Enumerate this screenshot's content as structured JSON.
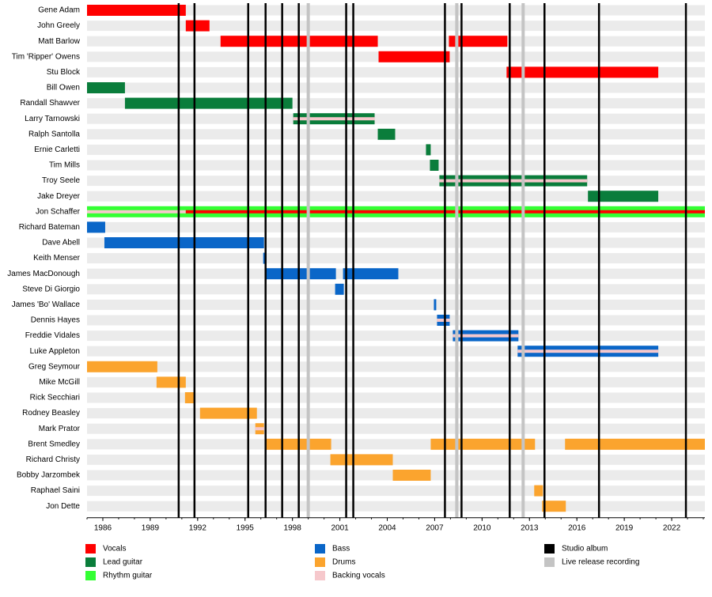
{
  "chart_data": {
    "type": "timeline",
    "xlim": [
      1985,
      2024.1
    ],
    "xticks": [
      1986,
      1989,
      1992,
      1995,
      1998,
      2001,
      2004,
      2007,
      2010,
      2013,
      2016,
      2019,
      2022
    ],
    "roles": [
      {
        "name": "Vocals",
        "color": "#ff0000"
      },
      {
        "name": "Lead guitar",
        "color": "#0a7d3b"
      },
      {
        "name": "Rhythm guitar",
        "color": "#33ff33"
      },
      {
        "name": "Bass",
        "color": "#0a66c8"
      },
      {
        "name": "Drums",
        "color": "#fba42e"
      },
      {
        "name": "Backing vocals",
        "color": "#f6c8cc"
      }
    ],
    "studio_albums": {
      "name": "Studio album",
      "color": "#000000",
      "years": [
        1990.8,
        1991.8,
        1995.2,
        1996.3,
        1997.35,
        1998.4,
        2001.4,
        2001.85,
        2007.65,
        2008.7,
        2011.75,
        2013.95,
        2017.4,
        2022.9
      ]
    },
    "live_releases": {
      "name": "Live release recording",
      "color": "#c4c4c4",
      "years": [
        1999,
        2008.4,
        2012.6
      ]
    },
    "members": [
      {
        "name": "Gene Adam",
        "stints": [
          {
            "role": "Vocals",
            "start": 1985,
            "end": 1991.25
          }
        ]
      },
      {
        "name": "John Greely",
        "stints": [
          {
            "role": "Vocals",
            "start": 1991.25,
            "end": 1992.75
          }
        ]
      },
      {
        "name": "Matt Barlow",
        "stints": [
          {
            "role": "Vocals",
            "start": 1993.45,
            "end": 2003.4
          },
          {
            "role": "Vocals",
            "start": 2007.9,
            "end": 2011.6
          }
        ]
      },
      {
        "name": "Tim 'Ripper' Owens",
        "stints": [
          {
            "role": "Vocals",
            "start": 2003.45,
            "end": 2007.95
          }
        ]
      },
      {
        "name": "Stu Block",
        "stints": [
          {
            "role": "Vocals",
            "start": 2011.55,
            "end": 2021.15
          }
        ]
      },
      {
        "name": "Bill Owen",
        "stints": [
          {
            "role": "Lead guitar",
            "start": 1985,
            "end": 1987.4
          }
        ]
      },
      {
        "name": "Randall Shawver",
        "stints": [
          {
            "role": "Lead guitar",
            "start": 1987.4,
            "end": 1998.0
          }
        ]
      },
      {
        "name": "Larry Tarnowski",
        "stints": [
          {
            "role": "Lead guitar",
            "start": 1998.05,
            "end": 2003.2
          },
          {
            "role": "Backing vocals",
            "start": 1998.05,
            "end": 2003.2
          }
        ]
      },
      {
        "name": "Ralph Santolla",
        "stints": [
          {
            "role": "Lead guitar",
            "start": 2003.4,
            "end": 2004.5
          }
        ]
      },
      {
        "name": "Ernie Carletti",
        "stints": [
          {
            "role": "Lead guitar",
            "start": 2006.45,
            "end": 2006.75
          }
        ]
      },
      {
        "name": "Tim Mills",
        "stints": [
          {
            "role": "Lead guitar",
            "start": 2006.7,
            "end": 2007.25
          }
        ]
      },
      {
        "name": "Troy Seele",
        "stints": [
          {
            "role": "Lead guitar",
            "start": 2007.3,
            "end": 2016.65
          },
          {
            "role": "Backing vocals",
            "start": 2007.3,
            "end": 2016.65
          }
        ]
      },
      {
        "name": "Jake Dreyer",
        "stints": [
          {
            "role": "Lead guitar",
            "start": 2016.7,
            "end": 2021.15
          }
        ]
      },
      {
        "name": "Jon Schaffer",
        "stints": [
          {
            "role": "Rhythm guitar",
            "start": 1985,
            "end": 2024.1
          },
          {
            "role": "Backing vocals",
            "start": 1985,
            "end": 1991.25
          },
          {
            "role": "Vocals",
            "start": 1991.25,
            "end": 2024.1
          }
        ]
      },
      {
        "name": "Richard Bateman",
        "stints": [
          {
            "role": "Bass",
            "start": 1985,
            "end": 1986.15
          }
        ]
      },
      {
        "name": "Dave Abell",
        "stints": [
          {
            "role": "Bass",
            "start": 1986.1,
            "end": 1996.2
          }
        ]
      },
      {
        "name": "Keith Menser",
        "stints": [
          {
            "role": "Bass",
            "start": 1996.15,
            "end": 1996.35
          }
        ]
      },
      {
        "name": "James MacDonough",
        "stints": [
          {
            "role": "Bass",
            "start": 1996.3,
            "end": 2000.75
          },
          {
            "role": "Bass",
            "start": 2001.2,
            "end": 2004.7
          }
        ]
      },
      {
        "name": "Steve Di Giorgio",
        "stints": [
          {
            "role": "Bass",
            "start": 2000.7,
            "end": 2001.25
          }
        ]
      },
      {
        "name": "James 'Bo' Wallace",
        "stints": [
          {
            "role": "Bass",
            "start": 2006.95,
            "end": 2007.1
          }
        ]
      },
      {
        "name": "Dennis Hayes",
        "stints": [
          {
            "role": "Bass",
            "start": 2007.15,
            "end": 2007.95
          },
          {
            "role": "Backing vocals",
            "start": 2007.15,
            "end": 2007.95
          }
        ]
      },
      {
        "name": "Freddie Vidales",
        "stints": [
          {
            "role": "Bass",
            "start": 2008.15,
            "end": 2012.3
          },
          {
            "role": "Backing vocals",
            "start": 2008.15,
            "end": 2012.3
          }
        ]
      },
      {
        "name": "Luke Appleton",
        "stints": [
          {
            "role": "Bass",
            "start": 2012.25,
            "end": 2021.15
          },
          {
            "role": "Backing vocals",
            "start": 2012.25,
            "end": 2021.15
          }
        ]
      },
      {
        "name": "Greg Seymour",
        "stints": [
          {
            "role": "Drums",
            "start": 1985,
            "end": 1989.45
          }
        ]
      },
      {
        "name": "Mike McGill",
        "stints": [
          {
            "role": "Drums",
            "start": 1989.4,
            "end": 1991.25
          }
        ]
      },
      {
        "name": "Rick Secchiari",
        "stints": [
          {
            "role": "Drums",
            "start": 1991.2,
            "end": 1991.85
          }
        ]
      },
      {
        "name": "Rodney Beasley",
        "stints": [
          {
            "role": "Drums",
            "start": 1992.15,
            "end": 1995.75
          }
        ]
      },
      {
        "name": "Mark Prator",
        "stints": [
          {
            "role": "Drums",
            "start": 1995.65,
            "end": 1996.2
          },
          {
            "role": "Backing vocals",
            "start": 1995.65,
            "end": 1996.2
          }
        ]
      },
      {
        "name": "Brent Smedley",
        "stints": [
          {
            "role": "Drums",
            "start": 1996.3,
            "end": 2000.45
          },
          {
            "role": "Drums",
            "start": 2006.75,
            "end": 2013.35
          },
          {
            "role": "Drums",
            "start": 2015.25,
            "end": 2024.1
          }
        ]
      },
      {
        "name": "Richard Christy",
        "stints": [
          {
            "role": "Drums",
            "start": 2000.4,
            "end": 2004.35
          }
        ]
      },
      {
        "name": "Bobby Jarzombek",
        "stints": [
          {
            "role": "Drums",
            "start": 2004.35,
            "end": 2006.75
          }
        ]
      },
      {
        "name": "Raphael Saini",
        "stints": [
          {
            "role": "Drums",
            "start": 2013.3,
            "end": 2013.85
          }
        ]
      },
      {
        "name": "Jon Dette",
        "stints": [
          {
            "role": "Drums",
            "start": 2013.8,
            "end": 2015.3
          }
        ]
      }
    ]
  }
}
